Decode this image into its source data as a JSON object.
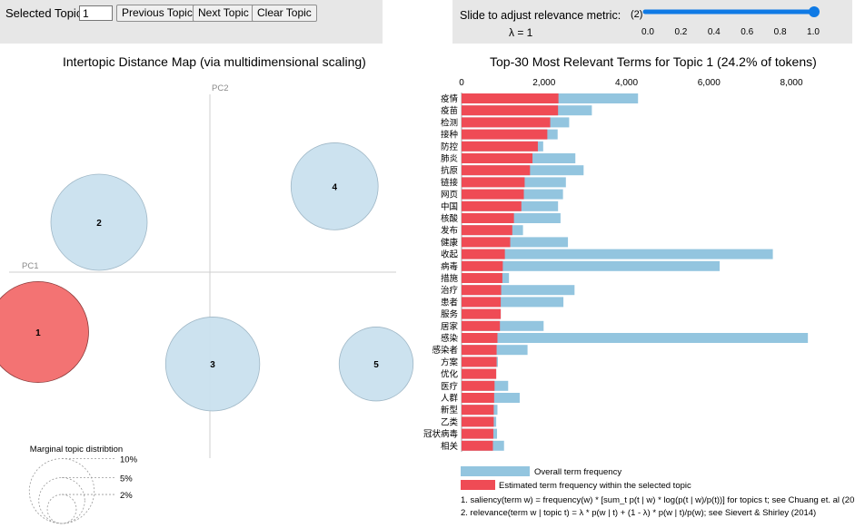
{
  "controls": {
    "selected_topic_label": "Selected Topic:",
    "selected_topic_value": "1",
    "previous_label": "Previous Topic",
    "next_label": "Next Topic",
    "clear_label": "Clear Topic",
    "slider_label": "Slide to adjust relevance metric:",
    "slider_footnote": "(2)",
    "lambda_text": "λ = 1",
    "lambda_value": 1,
    "slider_ticks": [
      "0.0",
      "0.2",
      "0.4",
      "0.6",
      "0.8",
      "1.0"
    ]
  },
  "colors": {
    "selected_topic": "#f26b6b",
    "topic": "#c9e0ee",
    "overall_bar": "#93c5df",
    "estimated_bar": "#ef4b55",
    "slider": "#0f7ae5"
  },
  "chart_data": [
    {
      "type": "scatter",
      "title": "Intertopic Distance Map (via multidimensional scaling)",
      "xlabel": "PC1",
      "ylabel": "PC2",
      "selected_topic": 1,
      "topics": [
        {
          "label": "1",
          "x": -0.62,
          "y": -0.3,
          "size": 24.2
        },
        {
          "label": "2",
          "x": -0.4,
          "y": 0.25,
          "size": 22.0
        },
        {
          "label": "3",
          "x": 0.01,
          "y": -0.46,
          "size": 21.0
        },
        {
          "label": "4",
          "x": 0.45,
          "y": 0.43,
          "size": 18.0
        },
        {
          "label": "5",
          "x": 0.6,
          "y": -0.46,
          "size": 13.0
        }
      ],
      "legend": {
        "title": "Marginal topic distribtion",
        "items": [
          {
            "label": "2%",
            "value": 2
          },
          {
            "label": "5%",
            "value": 5
          },
          {
            "label": "10%",
            "value": 10
          }
        ]
      }
    },
    {
      "type": "bar",
      "title": "Top-30 Most Relevant Terms for Topic 1 (24.2% of tokens)",
      "x_ticks": [
        "0",
        "2,000",
        "4,000",
        "6,000",
        "8,000"
      ],
      "xlim": [
        0,
        8800
      ],
      "categories": [
        "疫情",
        "疫苗",
        "检测",
        "接种",
        "防控",
        "肺炎",
        "抗原",
        "链接",
        "网页",
        "中国",
        "核酸",
        "发布",
        "健康",
        "收起",
        "病毒",
        "措施",
        "治疗",
        "患者",
        "服务",
        "居家",
        "感染",
        "感染者",
        "方案",
        "优化",
        "医疗",
        "人群",
        "新型",
        "乙类",
        "冠状病毒",
        "相关"
      ],
      "series": [
        {
          "name": "Overall term frequency",
          "values": [
            4280,
            3160,
            2610,
            2330,
            1980,
            2760,
            2960,
            2530,
            2460,
            2340,
            2400,
            1490,
            2580,
            7550,
            6260,
            1150,
            2740,
            2470,
            950,
            1990,
            8400,
            1600,
            880,
            840,
            1130,
            1410,
            870,
            840,
            860,
            1030
          ]
        },
        {
          "name": "Estimated term frequency within the selected topic",
          "values": [
            2350,
            2340,
            2150,
            2080,
            1850,
            1720,
            1660,
            1530,
            1510,
            1450,
            1270,
            1230,
            1180,
            1050,
            1000,
            990,
            960,
            950,
            950,
            930,
            870,
            850,
            850,
            840,
            800,
            790,
            780,
            780,
            770,
            760
          ]
        }
      ],
      "footnotes": [
        "1. saliency(term w) = frequency(w) * [sum_t p(t | w) * log(p(t | w)/p(t))] for topics t; see Chuang et. al (2012)",
        "2. relevance(term w | topic t) = λ * p(w | t) + (1 - λ) * p(w | t)/p(w); see Sievert & Shirley (2014)"
      ]
    }
  ]
}
